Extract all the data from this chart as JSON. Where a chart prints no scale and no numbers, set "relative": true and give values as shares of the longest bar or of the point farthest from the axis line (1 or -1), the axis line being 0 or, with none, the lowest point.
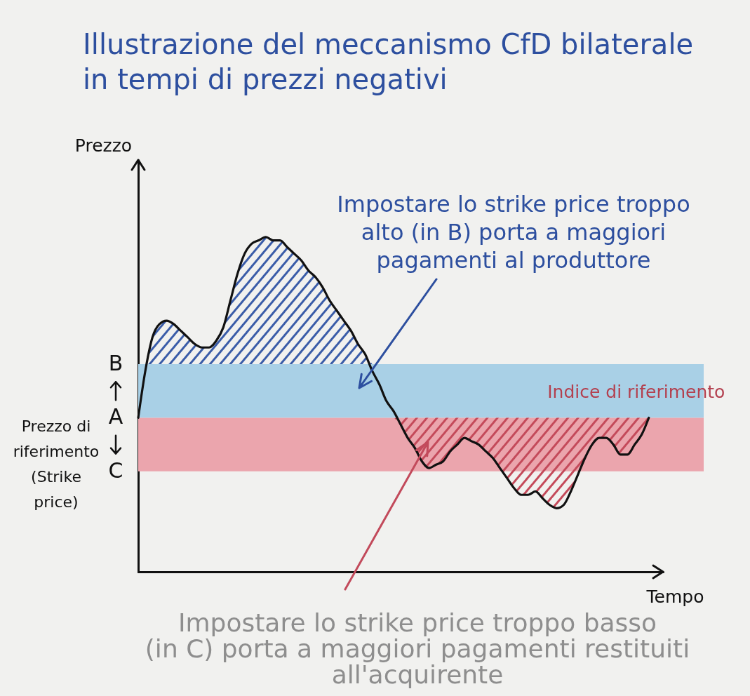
{
  "chart_data": {
    "type": "line",
    "title": "Illustrazione del meccanismo CfD bilaterale in tempi di prezzi negativi",
    "xlabel": "Tempo",
    "ylabel": "Prezzo",
    "relative": true,
    "categories": [
      null,
      null,
      null,
      null,
      null,
      null,
      null,
      null,
      null,
      null,
      null,
      null,
      null,
      null,
      null,
      null,
      null,
      null,
      null,
      null,
      null,
      null,
      null,
      null,
      null,
      null,
      null,
      null,
      null,
      null,
      null,
      null,
      null,
      null,
      null,
      null,
      null,
      null,
      null,
      null,
      null,
      null,
      null,
      null,
      null,
      null,
      null,
      null,
      null,
      null,
      null,
      null,
      null,
      null,
      null,
      null,
      null,
      null,
      null,
      null,
      null,
      null,
      null,
      null,
      null,
      null,
      null,
      null,
      null,
      null,
      null,
      null,
      null,
      null,
      null
    ],
    "series": [
      {
        "name": "Indice di riferimento",
        "color": "#111111",
        "values": [
          0.46,
          0.6,
          0.7,
          0.74,
          0.75,
          0.74,
          0.72,
          0.7,
          0.68,
          0.67,
          0.67,
          0.69,
          0.73,
          0.81,
          0.89,
          0.95,
          0.98,
          0.99,
          1.0,
          0.99,
          0.99,
          0.97,
          0.95,
          0.93,
          0.9,
          0.88,
          0.85,
          0.81,
          0.78,
          0.75,
          0.72,
          0.68,
          0.65,
          0.6,
          0.56,
          0.51,
          0.48,
          0.44,
          0.4,
          0.37,
          0.33,
          0.31,
          0.32,
          0.33,
          0.36,
          0.38,
          0.4,
          0.39,
          0.38,
          0.36,
          0.34,
          0.31,
          0.28,
          0.25,
          0.23,
          0.23,
          0.24,
          0.22,
          0.2,
          0.19,
          0.2,
          0.24,
          0.29,
          0.34,
          0.38,
          0.4,
          0.4,
          0.38,
          0.35,
          0.35,
          0.38,
          0.41,
          0.46,
          null,
          null
        ]
      }
    ],
    "bands": [
      {
        "axis": "y",
        "from": 0.46,
        "to": 0.62,
        "color": "#a9d0e6"
      },
      {
        "axis": "y",
        "from": 0.3,
        "to": 0.46,
        "color": "#eba5ad"
      }
    ],
    "annotations": [
      "Impostare lo strike price troppo alto (in B) porta a maggiori pagamenti al produttore",
      "Impostare lo strike price troppo basso (in C) porta a maggiori pagamenti restituiti all'acquirente",
      "Prezzo di riferimento (Strike price)",
      "B",
      "A",
      "C"
    ]
  }
}
